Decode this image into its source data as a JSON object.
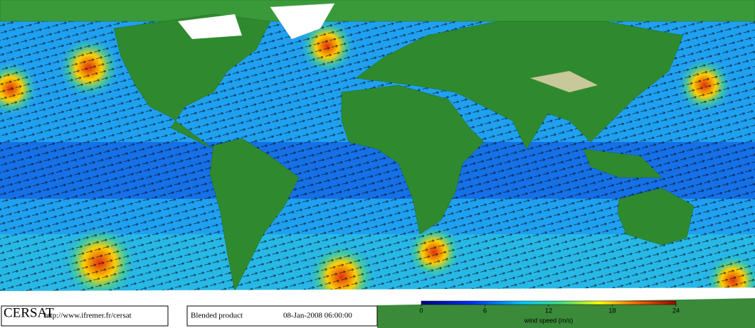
{
  "footer": {
    "organization": "CERSAT",
    "url": "http://www.ifremer.fr/cersat",
    "product": "Blended product",
    "timestamp": "08-Jan-2008 06:00:00"
  },
  "colorbar": {
    "label": "wind speed (m/s)",
    "lim": [
      0,
      24
    ],
    "ticks": [
      0,
      6,
      12,
      18,
      24
    ]
  }
}
